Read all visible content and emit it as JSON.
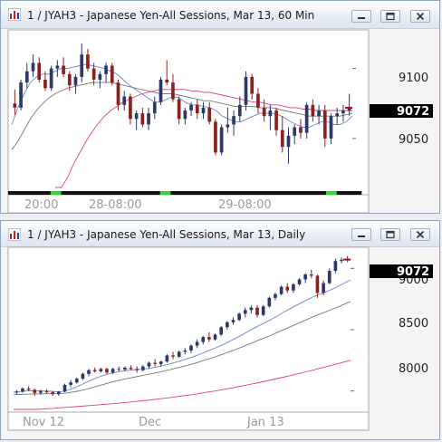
{
  "windows": [
    {
      "title": "1 / JYAH3 - Japanese Yen-All Sessions, Mar 13, 60 Min",
      "price_tag": "9072",
      "y_ticks": [
        "9100",
        "9050"
      ],
      "x_labels": [
        "20:00",
        "28-08:00",
        "29-08:00"
      ],
      "buttons": {
        "minimize": "minimize",
        "maximize": "maximize",
        "close": "close"
      }
    },
    {
      "title": "1 / JYAH3 - Japanese Yen-All Sessions, Mar 13, Daily",
      "price_tag": "9072",
      "y_ticks": [
        "9000",
        "8500",
        "8000"
      ],
      "x_labels": [
        "Nov 12",
        "Dec",
        "Jan 13"
      ],
      "buttons": {
        "minimize": "minimize",
        "maximize": "maximize",
        "close": "close"
      }
    }
  ],
  "chart_data": [
    {
      "type": "candlestick",
      "timeframe": "60 Min",
      "ylim": [
        9015,
        9125
      ],
      "yticks": [
        9100,
        9050
      ],
      "last_price": 9072,
      "colors": {
        "up": "#2b3a67",
        "down": "#8b2020",
        "ma_short": "#6c86c8",
        "ma_mid": "#777777",
        "ma_long": "#e0407a",
        "price_tag_bg": "#000000"
      },
      "candles": [
        [
          9075,
          9085,
          9067,
          9072
        ],
        [
          9072,
          9092,
          9070,
          9090
        ],
        [
          9090,
          9104,
          9086,
          9098
        ],
        [
          9098,
          9110,
          9094,
          9104
        ],
        [
          9104,
          9108,
          9090,
          9092
        ],
        [
          9092,
          9098,
          9084,
          9086
        ],
        [
          9086,
          9102,
          9084,
          9100
        ],
        [
          9100,
          9106,
          9094,
          9102
        ],
        [
          9102,
          9108,
          9094,
          9096
        ],
        [
          9096,
          9098,
          9084,
          9088
        ],
        [
          9088,
          9096,
          9082,
          9094
        ],
        [
          9094,
          9118,
          9090,
          9110
        ],
        [
          9110,
          9114,
          9098,
          9100
        ],
        [
          9100,
          9104,
          9088,
          9092
        ],
        [
          9092,
          9098,
          9086,
          9096
        ],
        [
          9096,
          9104,
          9090,
          9102
        ],
        [
          9102,
          9104,
          9088,
          9090
        ],
        [
          9090,
          9092,
          9070,
          9074
        ],
        [
          9074,
          9084,
          9070,
          9080
        ],
        [
          9080,
          9082,
          9060,
          9064
        ],
        [
          9064,
          9070,
          9056,
          9068
        ],
        [
          9068,
          9072,
          9058,
          9060
        ],
        [
          9060,
          9072,
          9056,
          9068
        ],
        [
          9068,
          9080,
          9064,
          9076
        ],
        [
          9076,
          9094,
          9074,
          9092
        ],
        [
          9092,
          9106,
          9088,
          9090
        ],
        [
          9090,
          9096,
          9076,
          9078
        ],
        [
          9078,
          9080,
          9060,
          9064
        ],
        [
          9064,
          9072,
          9060,
          9070
        ],
        [
          9070,
          9076,
          9066,
          9074
        ],
        [
          9074,
          9078,
          9064,
          9068
        ],
        [
          9068,
          9076,
          9064,
          9072
        ],
        [
          9072,
          9076,
          9060,
          9062
        ],
        [
          9062,
          9064,
          9038,
          9040
        ],
        [
          9040,
          9060,
          9038,
          9058
        ],
        [
          9058,
          9072,
          9054,
          9060
        ],
        [
          9060,
          9070,
          9052,
          9066
        ],
        [
          9066,
          9080,
          9062,
          9074
        ],
        [
          9074,
          9098,
          9070,
          9094
        ],
        [
          9094,
          9096,
          9078,
          9082
        ],
        [
          9082,
          9086,
          9068,
          9072
        ],
        [
          9072,
          9078,
          9062,
          9066
        ],
        [
          9066,
          9074,
          9056,
          9070
        ],
        [
          9070,
          9072,
          9052,
          9056
        ],
        [
          9056,
          9066,
          9040,
          9044
        ],
        [
          9044,
          9058,
          9032,
          9052
        ],
        [
          9052,
          9060,
          9046,
          9058
        ],
        [
          9058,
          9064,
          9050,
          9054
        ],
        [
          9054,
          9076,
          9050,
          9074
        ],
        [
          9074,
          9078,
          9062,
          9066
        ],
        [
          9066,
          9074,
          9060,
          9070
        ],
        [
          9070,
          9074,
          9044,
          9050
        ],
        [
          9050,
          9068,
          9046,
          9066
        ],
        [
          9066,
          9072,
          9060,
          9068
        ],
        [
          9068,
          9074,
          9062,
          9070
        ],
        [
          9070,
          9082,
          9066,
          9072
        ]
      ],
      "ma_short": [
        9060,
        9072,
        9082,
        9090,
        9094,
        9096,
        9096,
        9098,
        9100,
        9100,
        9101,
        9102,
        9103,
        9102,
        9101,
        9100,
        9098,
        9096,
        9092,
        9088,
        9085,
        9082,
        9079,
        9076,
        9076,
        9078,
        9080,
        9079,
        9076,
        9074,
        9074,
        9073,
        9072,
        9070,
        9066,
        9064,
        9062,
        9062,
        9064,
        9066,
        9068,
        9068,
        9068,
        9067,
        9065,
        9062,
        9060,
        9058,
        9058,
        9060,
        9062,
        9062,
        9060,
        9060,
        9062,
        9066
      ],
      "ma_mid": [
        9042,
        9048,
        9056,
        9064,
        9070,
        9075,
        9079,
        9082,
        9084,
        9086,
        9087,
        9088,
        9089,
        9090,
        9090,
        9090,
        9090,
        9089,
        9088,
        9087,
        9086,
        9085,
        9084,
        9083,
        9082,
        9082,
        9082,
        9081,
        9080,
        9079,
        9078,
        9077,
        9077,
        9076,
        9075,
        9074,
        9073,
        9073,
        9073,
        9073,
        9072,
        9072,
        9072,
        9071,
        9070,
        9069,
        9068,
        9067,
        9066,
        9066,
        9066,
        9066,
        9066,
        9066,
        9067,
        9068
      ],
      "ma_long": [
        null,
        null,
        null,
        null,
        null,
        null,
        null,
        9002,
        9012,
        9022,
        9032,
        9040,
        9048,
        9055,
        9061,
        9066,
        9070,
        9073,
        9076,
        9078,
        9080,
        9082,
        9083,
        9084,
        9085,
        9085,
        9085,
        9085,
        9085,
        9084,
        9084,
        9083,
        9083,
        9082,
        9081,
        9080,
        9079,
        9078,
        9077,
        9076,
        9076,
        9075,
        9074,
        9074,
        9073,
        9072,
        9072,
        9071,
        9071,
        9070,
        9070,
        9070,
        9070,
        9070,
        9070,
        9070
      ],
      "session_bar": [
        "d",
        "d",
        "d",
        "d",
        "d",
        "d",
        "d",
        "d",
        "d",
        "d",
        "d",
        "d",
        "g",
        "g",
        "g",
        "d",
        "d",
        "d",
        "d",
        "d",
        "d",
        "d",
        "d",
        "d",
        "d",
        "d",
        "d",
        "d",
        "d",
        "d",
        "d",
        "d",
        "d",
        "d",
        "d",
        "d",
        "d",
        "d",
        "d",
        "d",
        "d",
        "d",
        "d",
        "g",
        "g",
        "g",
        "d",
        "d",
        "d",
        "d",
        "d",
        "d",
        "d",
        "d",
        "d",
        "d",
        "d",
        "d",
        "d",
        "d",
        "d",
        "d",
        "d",
        "d",
        "d",
        "d",
        "d",
        "d",
        "d",
        "d",
        "d",
        "d",
        "d",
        "d",
        "d",
        "d",
        "d",
        "d",
        "d",
        "d",
        "d",
        "d",
        "d",
        "d",
        "d",
        "d",
        "d",
        "d",
        "d",
        "d",
        "g",
        "g",
        "g",
        "d",
        "d",
        "d",
        "d",
        "d",
        "d",
        "d"
      ],
      "x_labels": [
        "20:00",
        "28-08:00",
        "29-08:00"
      ]
    },
    {
      "type": "candlestick",
      "timeframe": "Daily",
      "ylim": [
        7850,
        9150
      ],
      "yticks": [
        9000,
        8500,
        8000
      ],
      "last_price": 9072,
      "colors": {
        "up": "#2b3a67",
        "down": "#8b2020",
        "ma_short": "#6c86c8",
        "ma_mid": "#777777",
        "ma_long": "#e0407a",
        "price_tag_bg": "#000000"
      },
      "candles": [
        [
          7990,
          8010,
          7970,
          7995
        ],
        [
          7995,
          8030,
          7985,
          8020
        ],
        [
          8020,
          8040,
          8000,
          8010
        ],
        [
          8010,
          8020,
          7960,
          7985
        ],
        [
          7985,
          8010,
          7970,
          8000
        ],
        [
          8000,
          8015,
          7980,
          7990
        ],
        [
          7990,
          8000,
          7960,
          7975
        ],
        [
          7975,
          8000,
          7960,
          7995
        ],
        [
          7995,
          8060,
          7990,
          8050
        ],
        [
          8050,
          8090,
          8030,
          8070
        ],
        [
          8070,
          8110,
          8060,
          8100
        ],
        [
          8100,
          8150,
          8090,
          8140
        ],
        [
          8140,
          8180,
          8120,
          8170
        ],
        [
          8170,
          8190,
          8150,
          8160
        ],
        [
          8160,
          8190,
          8150,
          8180
        ],
        [
          8180,
          8190,
          8140,
          8150
        ],
        [
          8150,
          8190,
          8140,
          8180
        ],
        [
          8180,
          8200,
          8160,
          8175
        ],
        [
          8175,
          8200,
          8160,
          8190
        ],
        [
          8190,
          8210,
          8170,
          8180
        ],
        [
          8180,
          8200,
          8150,
          8170
        ],
        [
          8170,
          8210,
          8160,
          8200
        ],
        [
          8200,
          8240,
          8180,
          8230
        ],
        [
          8230,
          8260,
          8200,
          8220
        ],
        [
          8220,
          8250,
          8200,
          8240
        ],
        [
          8240,
          8300,
          8230,
          8290
        ],
        [
          8290,
          8320,
          8260,
          8280
        ],
        [
          8280,
          8330,
          8270,
          8320
        ],
        [
          8320,
          8350,
          8300,
          8330
        ],
        [
          8330,
          8380,
          8310,
          8370
        ],
        [
          8370,
          8420,
          8350,
          8400
        ],
        [
          8400,
          8450,
          8380,
          8440
        ],
        [
          8440,
          8480,
          8400,
          8420
        ],
        [
          8420,
          8470,
          8410,
          8460
        ],
        [
          8460,
          8530,
          8450,
          8520
        ],
        [
          8520,
          8570,
          8500,
          8560
        ],
        [
          8560,
          8600,
          8540,
          8580
        ],
        [
          8580,
          8640,
          8570,
          8630
        ],
        [
          8630,
          8680,
          8600,
          8660
        ],
        [
          8660,
          8700,
          8630,
          8680
        ],
        [
          8680,
          8700,
          8600,
          8620
        ],
        [
          8620,
          8700,
          8610,
          8690
        ],
        [
          8690,
          8770,
          8680,
          8760
        ],
        [
          8760,
          8800,
          8740,
          8790
        ],
        [
          8790,
          8860,
          8780,
          8850
        ],
        [
          8850,
          8880,
          8800,
          8820
        ],
        [
          8820,
          8880,
          8800,
          8870
        ],
        [
          8870,
          8920,
          8860,
          8910
        ],
        [
          8910,
          8960,
          8880,
          8950
        ],
        [
          8950,
          8990,
          8920,
          8940
        ],
        [
          8940,
          8950,
          8760,
          8800
        ],
        [
          8800,
          8900,
          8780,
          8880
        ],
        [
          8880,
          9000,
          8870,
          8980
        ],
        [
          8980,
          9080,
          8960,
          9060
        ],
        [
          9060,
          9090,
          9040,
          9070
        ],
        [
          9070,
          9100,
          9050,
          9072
        ]
      ],
      "ma_short": [
        7990,
        7995,
        8000,
        8002,
        8001,
        8000,
        7998,
        7994,
        7996,
        8008,
        8028,
        8050,
        8074,
        8096,
        8116,
        8132,
        8146,
        8156,
        8164,
        8170,
        8174,
        8178,
        8184,
        8192,
        8202,
        8214,
        8228,
        8242,
        8258,
        8274,
        8292,
        8312,
        8332,
        8352,
        8374,
        8398,
        8424,
        8450,
        8478,
        8506,
        8532,
        8556,
        8582,
        8610,
        8640,
        8668,
        8694,
        8720,
        8746,
        8770,
        8790,
        8808,
        8830,
        8854,
        8880,
        8906
      ],
      "ma_mid": [
        7970,
        7972,
        7974,
        7976,
        7977,
        7978,
        7978,
        7978,
        7980,
        7986,
        7994,
        8004,
        8016,
        8030,
        8044,
        8058,
        8072,
        8084,
        8096,
        8106,
        8116,
        8126,
        8136,
        8146,
        8156,
        8168,
        8180,
        8192,
        8204,
        8218,
        8232,
        8248,
        8264,
        8280,
        8298,
        8316,
        8334,
        8354,
        8374,
        8394,
        8414,
        8434,
        8454,
        8476,
        8498,
        8520,
        8542,
        8564,
        8586,
        8608,
        8628,
        8646,
        8666,
        8686,
        8708,
        8730
      ],
      "ma_long": [
        7840,
        7842,
        7845,
        7848,
        7851,
        7854,
        7857,
        7860,
        7864,
        7868,
        7872,
        7876,
        7880,
        7884,
        7888,
        7892,
        7896,
        7900,
        7905,
        7910,
        7915,
        7920,
        7925,
        7931,
        7937,
        7943,
        7949,
        7956,
        7963,
        7970,
        7977,
        7985,
        7993,
        8001,
        8010,
        8019,
        8028,
        8038,
        8048,
        8058,
        8068,
        8079,
        8090,
        8101,
        8112,
        8124,
        8136,
        8148,
        8160,
        8172,
        8185,
        8198,
        8211,
        8224,
        8237,
        8250
      ],
      "x_labels": [
        "Nov 12",
        "Dec",
        "Jan 13"
      ]
    }
  ]
}
